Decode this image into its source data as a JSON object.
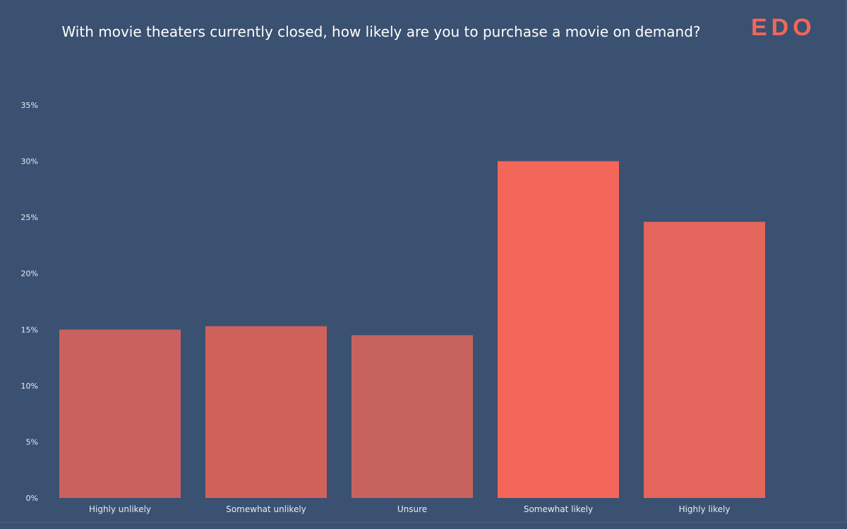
{
  "logo": "EDO",
  "chart_data": {
    "type": "bar",
    "title": "With movie theaters currently closed, how likely are you to purchase a movie on demand?",
    "categories": [
      "Highly unlikely",
      "Somewhat unlikely",
      "Unsure",
      "Somewhat likely",
      "Highly likely"
    ],
    "values": [
      15.0,
      15.3,
      14.5,
      30.0,
      24.6
    ],
    "colors": [
      "#c9625e",
      "#d0625c",
      "#c7635f",
      "#f4665a",
      "#e4665c"
    ],
    "xlabel": "",
    "ylabel": "",
    "ylim": [
      0,
      35
    ],
    "yticks": [
      0,
      5,
      10,
      15,
      20,
      25,
      30,
      35
    ],
    "ytick_labels": [
      "0%",
      "5%",
      "10%",
      "15%",
      "20%",
      "25%",
      "30%",
      "35%"
    ],
    "grid": false,
    "legend": "none"
  }
}
